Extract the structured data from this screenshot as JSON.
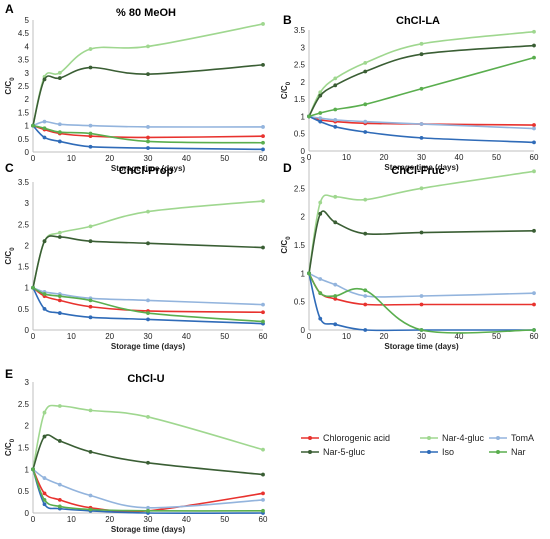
{
  "series_styles": [
    {
      "name": "Chlorogenic acid",
      "color": "#e8322e"
    },
    {
      "name": "Nar-4-gluc",
      "color": "#9fd78f"
    },
    {
      "name": "TomA",
      "color": "#93b4dd"
    },
    {
      "name": "Nar-5-gluc",
      "color": "#3a5e34"
    },
    {
      "name": "Iso",
      "color": "#2f6bb8"
    },
    {
      "name": "Nar",
      "color": "#5aae4e"
    }
  ],
  "chart_data": [
    {
      "type": "line",
      "letter": "A",
      "title": "% 80 MeOH",
      "xlabel": "Storage time (days)",
      "ylabel": "C/C",
      "ylabel_sub": "0",
      "xlim": [
        0,
        60
      ],
      "ylim": [
        0,
        5
      ],
      "xticks": [
        "0",
        "10",
        "20",
        "30",
        "40",
        "50",
        "60"
      ],
      "yticks": [
        "0",
        "0.5",
        "1",
        "1.5",
        "2",
        "2.5",
        "3",
        "3.5",
        "4",
        "4.5",
        "5"
      ],
      "x": [
        0,
        3,
        7,
        15,
        30,
        60
      ],
      "series": [
        {
          "name": "Chlorogenic acid",
          "values": [
            1,
            0.85,
            0.7,
            0.6,
            0.55,
            0.6
          ]
        },
        {
          "name": "Nar-4-gluc",
          "values": [
            1,
            2.85,
            3.0,
            3.9,
            4.0,
            4.85
          ]
        },
        {
          "name": "TomA",
          "values": [
            1,
            1.15,
            1.05,
            1.0,
            0.95,
            0.95
          ]
        },
        {
          "name": "Nar-5-gluc",
          "values": [
            1,
            2.75,
            2.8,
            3.2,
            2.95,
            3.3
          ]
        },
        {
          "name": "Iso",
          "values": [
            1,
            0.55,
            0.4,
            0.2,
            0.15,
            0.1
          ]
        },
        {
          "name": "Nar",
          "values": [
            1,
            0.9,
            0.75,
            0.7,
            0.4,
            0.35
          ]
        }
      ]
    },
    {
      "type": "line",
      "letter": "B",
      "title": "ChCl-LA",
      "xlabel": "Storage time (days)",
      "ylabel": "C/C",
      "ylabel_sub": "0",
      "xlim": [
        0,
        60
      ],
      "ylim": [
        0,
        3.5
      ],
      "xticks": [
        "0",
        "10",
        "20",
        "30",
        "40",
        "50",
        "60"
      ],
      "yticks": [
        "0",
        "0.5",
        "1",
        "1.5",
        "2",
        "2.5",
        "3",
        "3.5"
      ],
      "x": [
        0,
        3,
        7,
        15,
        30,
        60
      ],
      "series": [
        {
          "name": "Chlorogenic acid",
          "values": [
            1,
            0.9,
            0.85,
            0.8,
            0.78,
            0.75
          ]
        },
        {
          "name": "Nar-4-gluc",
          "values": [
            1,
            1.7,
            2.1,
            2.55,
            3.1,
            3.45
          ]
        },
        {
          "name": "TomA",
          "values": [
            1,
            0.95,
            0.9,
            0.85,
            0.78,
            0.65
          ]
        },
        {
          "name": "Nar-5-gluc",
          "values": [
            1,
            1.6,
            1.9,
            2.3,
            2.8,
            3.05
          ]
        },
        {
          "name": "Iso",
          "values": [
            1,
            0.85,
            0.7,
            0.55,
            0.38,
            0.25
          ]
        },
        {
          "name": "Nar",
          "values": [
            1,
            1.1,
            1.2,
            1.35,
            1.8,
            2.7
          ]
        }
      ]
    },
    {
      "type": "line",
      "letter": "C",
      "title": "ChCl-Prop",
      "xlabel": "Storage time (days)",
      "ylabel": "C/C",
      "ylabel_sub": "0",
      "xlim": [
        0,
        60
      ],
      "ylim": [
        0,
        3.5
      ],
      "xticks": [
        "0",
        "10",
        "20",
        "30",
        "40",
        "50",
        "60"
      ],
      "yticks": [
        "0",
        "0.5",
        "1",
        "1.5",
        "2",
        "2.5",
        "3",
        "3.5"
      ],
      "x": [
        0,
        3,
        7,
        15,
        30,
        60
      ],
      "series": [
        {
          "name": "Chlorogenic acid",
          "values": [
            1,
            0.8,
            0.7,
            0.55,
            0.45,
            0.42
          ]
        },
        {
          "name": "Nar-4-gluc",
          "values": [
            1,
            2.1,
            2.3,
            2.45,
            2.8,
            3.05
          ]
        },
        {
          "name": "TomA",
          "values": [
            1,
            0.9,
            0.85,
            0.75,
            0.7,
            0.6
          ]
        },
        {
          "name": "Nar-5-gluc",
          "values": [
            1,
            2.1,
            2.2,
            2.1,
            2.05,
            1.95
          ]
        },
        {
          "name": "Iso",
          "values": [
            1,
            0.5,
            0.4,
            0.3,
            0.25,
            0.15
          ]
        },
        {
          "name": "Nar",
          "values": [
            1,
            0.85,
            0.8,
            0.7,
            0.4,
            0.2
          ]
        }
      ]
    },
    {
      "type": "line",
      "letter": "D",
      "title": "ChCl-Fruc",
      "xlabel": "Storage time (days)",
      "ylabel": "C/C",
      "ylabel_sub": "0",
      "xlim": [
        0,
        60
      ],
      "ylim": [
        0,
        3
      ],
      "xticks": [
        "0",
        "10",
        "20",
        "30",
        "40",
        "50",
        "60"
      ],
      "yticks": [
        "0",
        "0.5",
        "1",
        "1.5",
        "2",
        "2.5",
        "3"
      ],
      "x": [
        0,
        3,
        7,
        15,
        30,
        60
      ],
      "series": [
        {
          "name": "Chlorogenic acid",
          "values": [
            1,
            0.65,
            0.55,
            0.45,
            0.45,
            0.45
          ]
        },
        {
          "name": "Nar-4-gluc",
          "values": [
            1,
            2.25,
            2.35,
            2.3,
            2.5,
            2.8
          ]
        },
        {
          "name": "TomA",
          "values": [
            1,
            0.9,
            0.8,
            0.6,
            0.6,
            0.65
          ]
        },
        {
          "name": "Nar-5-gluc",
          "values": [
            1,
            2.05,
            1.9,
            1.7,
            1.72,
            1.75
          ]
        },
        {
          "name": "Iso",
          "values": [
            1,
            0.2,
            0.1,
            0.0,
            0.0,
            0.0
          ]
        },
        {
          "name": "Nar",
          "values": [
            1,
            0.65,
            0.6,
            0.7,
            0.0,
            0.0
          ]
        }
      ]
    },
    {
      "type": "line",
      "letter": "E",
      "title": "ChCl-U",
      "xlabel": "Storage time (days)",
      "ylabel": "C/C",
      "ylabel_sub": "0",
      "xlim": [
        0,
        60
      ],
      "ylim": [
        0,
        3
      ],
      "xticks": [
        "0",
        "10",
        "20",
        "30",
        "40",
        "50",
        "60"
      ],
      "yticks": [
        "0",
        "0.5",
        "1",
        "1.5",
        "2",
        "2.5",
        "3"
      ],
      "x": [
        0,
        3,
        7,
        15,
        30,
        60
      ],
      "series": [
        {
          "name": "Chlorogenic acid",
          "values": [
            1,
            0.45,
            0.3,
            0.12,
            0.05,
            0.45
          ]
        },
        {
          "name": "Nar-4-gluc",
          "values": [
            1,
            2.3,
            2.45,
            2.35,
            2.2,
            1.45
          ]
        },
        {
          "name": "TomA",
          "values": [
            1,
            0.8,
            0.65,
            0.4,
            0.12,
            0.3
          ]
        },
        {
          "name": "Nar-5-gluc",
          "values": [
            1,
            1.75,
            1.65,
            1.4,
            1.15,
            0.88
          ]
        },
        {
          "name": "Iso",
          "values": [
            1,
            0.2,
            0.1,
            0.05,
            0.0,
            0.0
          ]
        },
        {
          "name": "Nar",
          "values": [
            1,
            0.3,
            0.15,
            0.08,
            0.05,
            0.05
          ]
        }
      ]
    }
  ]
}
